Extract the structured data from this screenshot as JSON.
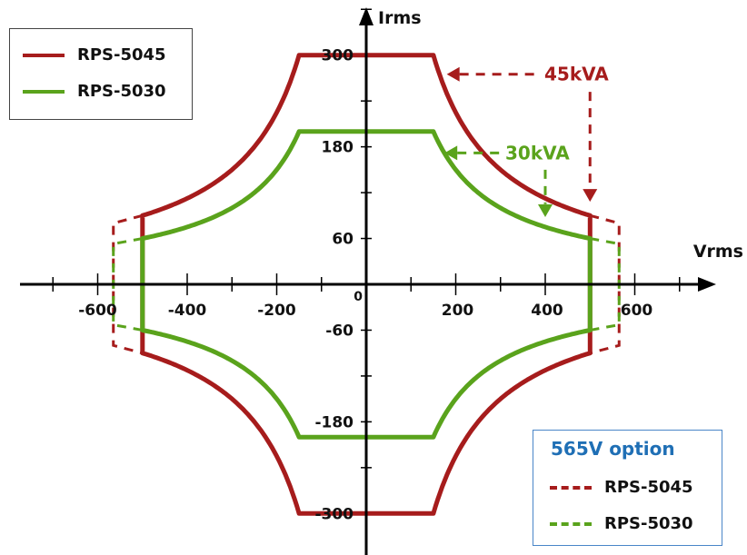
{
  "chart_data": {
    "type": "line",
    "title": "",
    "xlabel": "Vrms",
    "ylabel": "Irms",
    "xlim": [
      -740,
      740
    ],
    "ylim": [
      -345,
      345
    ],
    "x_ticks": [
      -600,
      -400,
      -200,
      200,
      400,
      600
    ],
    "x_tick_labels": [
      "-600",
      "-400",
      "-200",
      "200",
      "400",
      "600"
    ],
    "y_ticks": [
      -300,
      -180,
      -60,
      60,
      180,
      300
    ],
    "y_tick_labels": [
      "-300",
      "-180",
      "-60",
      "60",
      "180",
      "300"
    ],
    "origin_label": "0",
    "series": [
      {
        "name": "RPS-5045",
        "color": "#a61c1c",
        "style": "solid",
        "power_w": 45000,
        "v_max": 500,
        "i_max": 300
      },
      {
        "name": "RPS-5030",
        "color": "#5aa31c",
        "style": "solid",
        "power_w": 30000,
        "v_max": 500,
        "i_max": 200
      },
      {
        "name": "RPS-5045",
        "group": "565V option",
        "color": "#a61c1c",
        "style": "dashed",
        "v_max": 565,
        "i_at_vmax": 80
      },
      {
        "name": "RPS-5030",
        "group": "565V option",
        "color": "#5aa31c",
        "style": "dashed",
        "v_max": 565,
        "i_at_vmax": 53
      }
    ],
    "legend_placement": "top-left",
    "annotations": [
      {
        "text": "45kVA",
        "color": "#a61c1c"
      },
      {
        "text": "30kVA",
        "color": "#5aa31c"
      }
    ]
  },
  "legend_main": {
    "items": [
      {
        "label": "RPS-5045",
        "color": "#a61c1c"
      },
      {
        "label": "RPS-5030",
        "color": "#5aa31c"
      }
    ]
  },
  "legend_option": {
    "title": "565V option",
    "items": [
      {
        "label": "RPS-5045",
        "color": "#a61c1c"
      },
      {
        "label": "RPS-5030",
        "color": "#5aa31c"
      }
    ]
  }
}
